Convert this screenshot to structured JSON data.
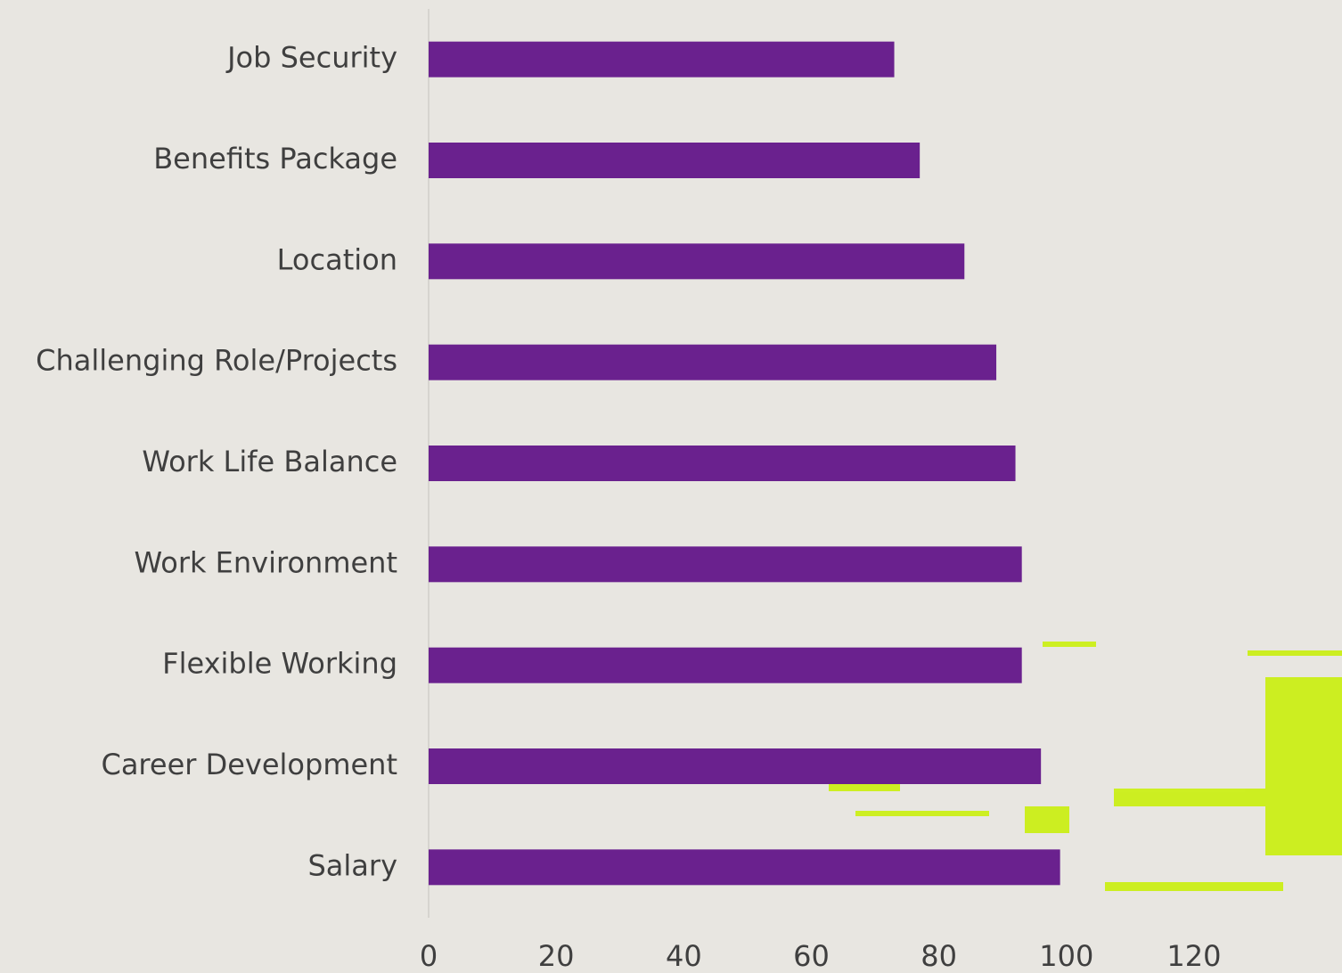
{
  "chart_data": {
    "type": "barh",
    "categories": [
      "Job Security",
      "Benefits Package",
      "Location",
      "Challenging Role/Projects",
      "Work Life Balance",
      "Work Environment",
      "Flexible Working",
      "Career Development",
      "Salary"
    ],
    "values": [
      73,
      77,
      84,
      89,
      92,
      93,
      93,
      96,
      99
    ],
    "color": "#6a218e",
    "xlim": [
      0,
      143
    ],
    "xticks": [
      0,
      20,
      40,
      60,
      80,
      100,
      120
    ]
  }
}
